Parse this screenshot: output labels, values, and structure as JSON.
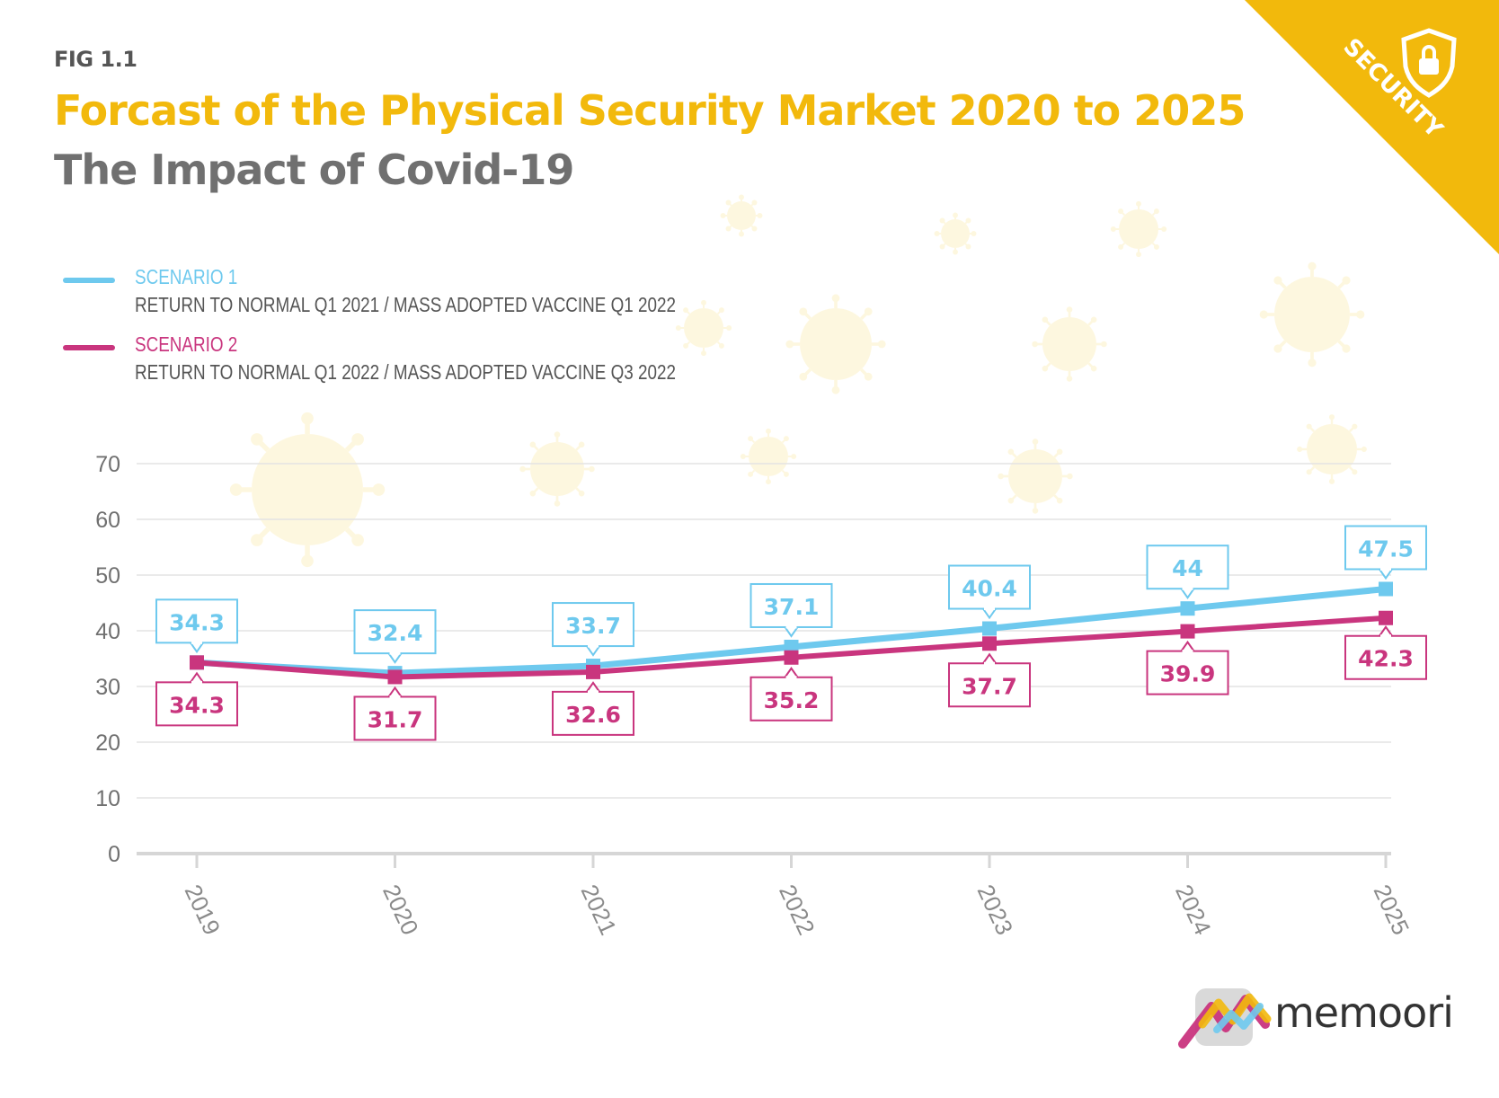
{
  "figure": {
    "label": "FIG 1.1",
    "title": "Forcast of the Physical Security Market 2020 to 2025",
    "subtitle": "The Impact of Covid-19",
    "corner_badge": "SECURITY",
    "corner_icon": "shield-lock-icon",
    "brand": "memoori",
    "brand_icon": "memoori-logo-icon"
  },
  "colors": {
    "accent": "#f2b90c",
    "scenario1": "#6ec9ee",
    "scenario2": "#c9357e",
    "subtitle": "#707070"
  },
  "legend": [
    {
      "name": "SCENARIO 1",
      "description": "RETURN TO NORMAL Q1 2021 / MASS ADOPTED VACCINE Q1 2022"
    },
    {
      "name": "SCENARIO 2",
      "description": "RETURN TO NORMAL Q1 2022 / MASS ADOPTED VACCINE Q3 2022"
    }
  ],
  "chart_data": {
    "type": "line",
    "x": [
      "2019",
      "2020",
      "2021",
      "2022",
      "2023",
      "2024",
      "2025"
    ],
    "ylim": [
      0,
      70
    ],
    "yticks": [
      0,
      10,
      20,
      30,
      40,
      50,
      60,
      70
    ],
    "grid": true,
    "legend_position": "top-left",
    "series": [
      {
        "name": "SCENARIO 1",
        "values": [
          34.3,
          32.4,
          33.7,
          37.1,
          40.4,
          44,
          47.5
        ],
        "labels": [
          "34.3",
          "32.4",
          "33.7",
          "37.1",
          "40.4",
          "44",
          "47.5"
        ]
      },
      {
        "name": "SCENARIO 2",
        "values": [
          34.3,
          31.7,
          32.6,
          35.2,
          37.7,
          39.9,
          42.3
        ],
        "labels": [
          "34.3",
          "31.7",
          "32.6",
          "35.2",
          "37.7",
          "39.9",
          "42.3"
        ]
      }
    ]
  }
}
